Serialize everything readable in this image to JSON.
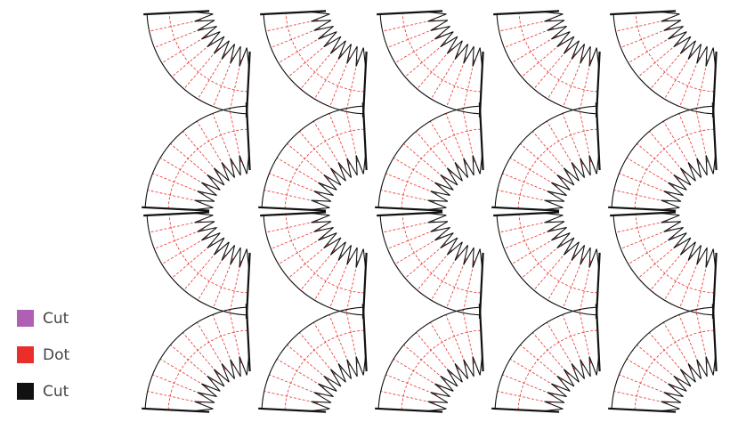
{
  "legend": {
    "items": [
      {
        "label": "Cut",
        "color": "#b060b4"
      },
      {
        "label": "Dot",
        "color": "#ea2f2a"
      },
      {
        "label": "Cut",
        "color": "#111111"
      }
    ]
  }
}
